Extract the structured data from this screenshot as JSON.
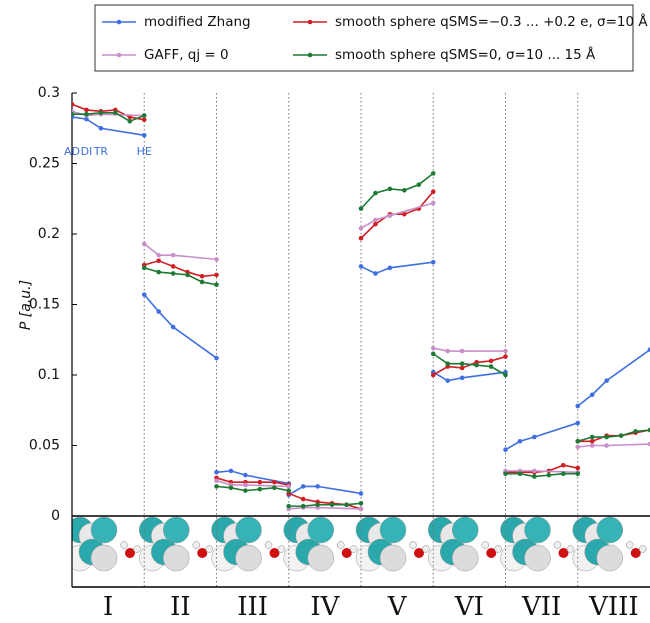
{
  "chart_data": {
    "type": "line",
    "ylabel": "P [a.u.]",
    "xlim": [
      0,
      8
    ],
    "ylim": [
      0,
      0.3
    ],
    "yticks": [
      0,
      0.05,
      0.1,
      0.15,
      0.2,
      0.25,
      0.3
    ],
    "group_labels": [
      "I",
      "II",
      "III",
      "IV",
      "V",
      "VI",
      "VII",
      "VIII"
    ],
    "point_labels": [
      "AD",
      "DI",
      "TR",
      "HE"
    ],
    "series": [
      {
        "name": "modified Zhang",
        "color": "#3f6fe0",
        "x": [
          0,
          0.2,
          0.4,
          1,
          null,
          1,
          1.2,
          1.4,
          2,
          null,
          2,
          2.2,
          2.4,
          3,
          null,
          3,
          3.2,
          3.4,
          4,
          null,
          4,
          4.2,
          4.4,
          5,
          null,
          5,
          5.2,
          5.4,
          6,
          null,
          6,
          6.2,
          6.4,
          7,
          null,
          7,
          7.2,
          7.4,
          8
        ],
        "values": [
          0.283,
          0.2815,
          0.275,
          0.27,
          null,
          0.157,
          0.145,
          0.134,
          0.112,
          null,
          0.031,
          0.032,
          0.029,
          0.023,
          null,
          0.015,
          0.021,
          0.021,
          0.016,
          null,
          0.177,
          0.172,
          0.176,
          0.18,
          null,
          0.102,
          0.096,
          0.098,
          0.102,
          null,
          0.047,
          0.053,
          0.056,
          0.066,
          null,
          0.078,
          0.086,
          0.096,
          0.118
        ]
      },
      {
        "name": "smooth sphere qSMS=−0.3 ... +0.2 e,  σ=10 Å",
        "color": "#d01f24",
        "x": [
          0,
          0.2,
          0.4,
          0.6,
          0.8,
          1,
          null,
          1,
          1.2,
          1.4,
          1.6,
          1.8,
          2,
          null,
          2,
          2.2,
          2.4,
          2.6,
          2.8,
          3,
          null,
          3,
          3.2,
          3.4,
          3.6,
          3.8,
          4,
          null,
          4,
          4.2,
          4.4,
          4.6,
          4.8,
          5,
          null,
          5,
          5.2,
          5.4,
          5.6,
          5.8,
          6,
          null,
          6,
          6.2,
          6.4,
          6.6,
          6.8,
          7,
          null,
          7,
          7.2,
          7.4,
          7.6,
          7.8,
          8
        ],
        "values": [
          0.292,
          0.288,
          0.287,
          0.288,
          0.283,
          0.281,
          null,
          0.178,
          0.181,
          0.177,
          0.173,
          0.17,
          0.171,
          null,
          0.027,
          0.024,
          0.024,
          0.024,
          0.024,
          0.022,
          null,
          0.016,
          0.012,
          0.01,
          0.009,
          0.008,
          0.005,
          null,
          0.197,
          0.207,
          0.214,
          0.214,
          0.218,
          0.23,
          null,
          0.1,
          0.106,
          0.105,
          0.109,
          0.11,
          0.113,
          null,
          0.031,
          0.031,
          0.031,
          0.032,
          0.036,
          0.034,
          null,
          0.053,
          0.053,
          0.057,
          0.057,
          0.059,
          0.061
        ]
      },
      {
        "name": "GAFF, qj = 0",
        "color": "#c98fc9",
        "x": [
          0,
          0.2,
          0.4,
          1,
          null,
          1,
          1.2,
          1.4,
          2,
          null,
          2,
          2.2,
          2.4,
          3,
          null,
          3,
          3.2,
          3.4,
          4,
          null,
          4,
          4.2,
          4.4,
          5,
          null,
          5,
          5.2,
          5.4,
          6,
          null,
          6,
          6.2,
          6.4,
          7,
          null,
          7,
          7.2,
          7.4,
          8
        ],
        "values": [
          0.287,
          0.284,
          0.285,
          0.284,
          null,
          0.193,
          0.185,
          0.185,
          0.182,
          null,
          0.025,
          0.022,
          0.022,
          0.021,
          null,
          0.005,
          0.006,
          0.006,
          0.005,
          null,
          0.204,
          0.21,
          0.213,
          0.222,
          null,
          0.119,
          0.117,
          0.117,
          0.117,
          null,
          0.032,
          0.032,
          0.032,
          0.031,
          null,
          0.049,
          0.05,
          0.05,
          0.051
        ]
      },
      {
        "name": "smooth sphere qSMS=0, σ=10 ... 15 Å",
        "color": "#1d7a34",
        "x": [
          0,
          0.2,
          0.4,
          0.6,
          0.8,
          1,
          null,
          1,
          1.2,
          1.4,
          1.6,
          1.8,
          2,
          null,
          2,
          2.2,
          2.4,
          2.6,
          2.8,
          3,
          null,
          3,
          3.2,
          3.4,
          3.6,
          3.8,
          4,
          null,
          4,
          4.2,
          4.4,
          4.6,
          4.8,
          5,
          null,
          5,
          5.2,
          5.4,
          5.6,
          5.8,
          6,
          null,
          6,
          6.2,
          6.4,
          6.6,
          6.8,
          7,
          null,
          7,
          7.2,
          7.4,
          7.6,
          7.8,
          8
        ],
        "values": [
          0.285,
          0.285,
          0.286,
          0.286,
          0.28,
          0.284,
          null,
          0.176,
          0.173,
          0.172,
          0.171,
          0.166,
          0.164,
          null,
          0.021,
          0.02,
          0.018,
          0.019,
          0.02,
          0.018,
          null,
          0.007,
          0.007,
          0.008,
          0.008,
          0.008,
          0.009,
          null,
          0.218,
          0.229,
          0.232,
          0.231,
          0.235,
          0.243,
          null,
          0.115,
          0.108,
          0.108,
          0.107,
          0.106,
          0.1,
          null,
          0.03,
          0.03,
          0.028,
          0.029,
          0.03,
          0.03,
          null,
          0.053,
          0.056,
          0.056,
          0.057,
          0.06,
          0.061
        ]
      }
    ],
    "grid": false
  }
}
